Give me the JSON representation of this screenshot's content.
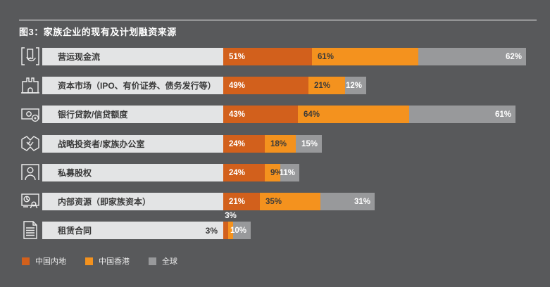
{
  "title": "图3：家族企业的现有及计划融资来源",
  "colors": {
    "background": "#58595B",
    "label_bar": "#E3E4E5",
    "mainland": "#D2601C",
    "hongkong": "#F4921E",
    "global": "#98999B",
    "text_dark": "#3A3A3A",
    "text_light": "#FFFFFF"
  },
  "legend": [
    {
      "key": "mainland",
      "label": "中国内地"
    },
    {
      "key": "hongkong",
      "label": "中国香港"
    },
    {
      "key": "global",
      "label": "全球"
    }
  ],
  "chart_data": {
    "type": "bar",
    "orientation": "horizontal",
    "stacked": true,
    "unit": "%",
    "grid": false,
    "legend_position": "bottom",
    "title": "图3：家族企业的现有及计划融资来源",
    "categories": [
      "营运现金流",
      "资本市场（IPO、有价证券、债务发行等）",
      "银行贷款/信贷额度",
      "战略投资者/家族办公室",
      "私募股权",
      "内部资源（即家族资本）",
      "租赁合同"
    ],
    "category_icons": [
      "cash-flow-icon",
      "capital-markets-icon",
      "bank-loan-icon",
      "handshake-icon",
      "person-icon",
      "board-icon",
      "contract-icon"
    ],
    "series": [
      {
        "name": "中国内地",
        "color_key": "mainland",
        "values": [
          51,
          49,
          43,
          24,
          24,
          21,
          3
        ]
      },
      {
        "name": "中国香港",
        "color_key": "hongkong",
        "values": [
          61,
          21,
          64,
          18,
          9,
          35,
          3
        ]
      },
      {
        "name": "全球",
        "color_key": "global",
        "values": [
          62,
          12,
          61,
          15,
          11,
          31,
          10
        ]
      }
    ],
    "value_axis_range": [
      0,
      100
    ]
  }
}
